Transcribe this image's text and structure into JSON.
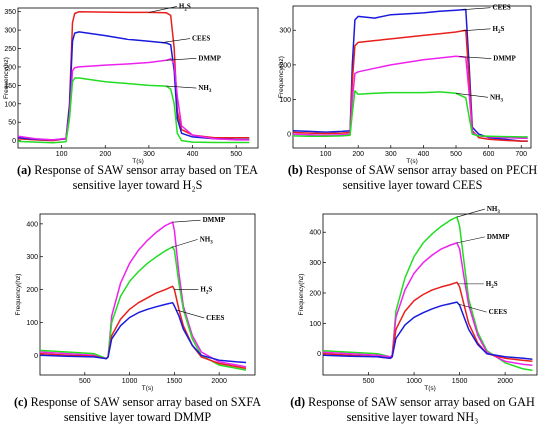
{
  "chart_data": [
    {
      "type": "line",
      "panel_letter": "(a)",
      "caption_line1": " Response of SAW sensor array based on TEA",
      "caption_line2": "sensitive layer toward H₂S",
      "xlabel": "T(s)",
      "ylabel": "Frequency(hz)",
      "xlim": [
        0,
        550
      ],
      "ylim": [
        -20,
        360
      ],
      "xticks": [
        100,
        200,
        300,
        400,
        500
      ],
      "yticks": [
        0,
        50,
        100,
        150,
        200,
        250,
        300,
        350
      ],
      "grid": false,
      "series": [
        {
          "name": "H₂S",
          "color": "#e8201c",
          "x": [
            0,
            40,
            80,
            110,
            118,
            125,
            130,
            140,
            200,
            250,
            300,
            340,
            350,
            358,
            365,
            375,
            400,
            450,
            500,
            530
          ],
          "y": [
            5,
            2,
            0,
            5,
            100,
            320,
            345,
            350,
            349,
            348,
            348,
            347,
            340,
            250,
            80,
            30,
            15,
            8,
            8,
            8
          ]
        },
        {
          "name": "CEES",
          "color": "#1a1adf",
          "x": [
            0,
            40,
            80,
            110,
            118,
            125,
            130,
            140,
            200,
            250,
            300,
            340,
            350,
            358,
            365,
            375,
            400,
            450,
            500,
            530
          ],
          "y": [
            8,
            4,
            2,
            5,
            90,
            270,
            292,
            295,
            285,
            275,
            270,
            265,
            260,
            190,
            60,
            20,
            10,
            5,
            3,
            3
          ]
        },
        {
          "name": "DMMP",
          "color": "#ee22ee",
          "x": [
            0,
            40,
            80,
            110,
            118,
            125,
            130,
            140,
            200,
            250,
            300,
            340,
            350,
            358,
            365,
            375,
            400,
            450,
            500,
            530
          ],
          "y": [
            12,
            5,
            2,
            6,
            70,
            190,
            198,
            200,
            205,
            208,
            212,
            218,
            222,
            210,
            120,
            40,
            15,
            5,
            2,
            2
          ]
        },
        {
          "name": "NH₃",
          "color": "#22dd22",
          "x": [
            0,
            40,
            80,
            110,
            118,
            125,
            130,
            140,
            200,
            250,
            300,
            340,
            350,
            358,
            365,
            375,
            400,
            450,
            500,
            530
          ],
          "y": [
            -2,
            -4,
            -6,
            -3,
            60,
            160,
            170,
            170,
            160,
            155,
            150,
            148,
            140,
            100,
            20,
            0,
            -4,
            -5,
            -5,
            -5
          ]
        }
      ],
      "annotations": [
        {
          "text": "H",
          "sub": "2",
          "text2": "S",
          "series": "H₂S",
          "at_x": 300
        },
        {
          "text": "CEES",
          "sub": "",
          "text2": "",
          "series": "CEES",
          "at_x": 330
        },
        {
          "text": "DMMP",
          "sub": "",
          "text2": "",
          "series": "DMMP",
          "at_x": 340
        },
        {
          "text": "NH",
          "sub": "3",
          "text2": "",
          "series": "NH₃",
          "at_x": 340
        }
      ]
    },
    {
      "type": "line",
      "panel_letter": "(b)",
      "caption_line1": " Response of SAW sensor array based on PECH",
      "caption_line2": "sensitive layer toward CEES",
      "xlabel": "T(s)",
      "ylabel": "Frequency(hz)",
      "xlim": [
        0,
        730
      ],
      "ylim": [
        -40,
        370
      ],
      "xticks": [
        100,
        200,
        300,
        400,
        500,
        600,
        700
      ],
      "yticks": [
        0,
        100,
        200,
        300
      ],
      "grid": false,
      "series": [
        {
          "name": "CEES",
          "color": "#1a1adf",
          "x": [
            0,
            50,
            100,
            150,
            175,
            182,
            190,
            200,
            250,
            300,
            400,
            450,
            500,
            530,
            540,
            550,
            570,
            600,
            650,
            700,
            720
          ],
          "y": [
            10,
            8,
            6,
            8,
            10,
            200,
            330,
            340,
            335,
            345,
            350,
            355,
            358,
            360,
            200,
            20,
            0,
            -10,
            -15,
            -20,
            -20
          ]
        },
        {
          "name": "H₂S",
          "color": "#e8201c",
          "x": [
            0,
            50,
            100,
            150,
            175,
            182,
            190,
            200,
            250,
            300,
            400,
            450,
            500,
            530,
            540,
            550,
            570,
            600,
            650,
            700,
            720
          ],
          "y": [
            5,
            3,
            2,
            3,
            5,
            150,
            255,
            265,
            270,
            275,
            285,
            290,
            295,
            300,
            160,
            10,
            -10,
            -15,
            -18,
            -20,
            -20
          ]
        },
        {
          "name": "DMMP",
          "color": "#ee22ee",
          "x": [
            0,
            50,
            100,
            150,
            175,
            182,
            190,
            200,
            250,
            300,
            400,
            450,
            500,
            530,
            540,
            550,
            570,
            600,
            650,
            700,
            720
          ],
          "y": [
            0,
            -2,
            -3,
            -2,
            0,
            100,
            175,
            180,
            190,
            200,
            215,
            220,
            225,
            222,
            120,
            5,
            -5,
            -8,
            -10,
            -12,
            -12
          ]
        },
        {
          "name": "NH₃",
          "color": "#22dd22",
          "x": [
            0,
            50,
            100,
            150,
            175,
            182,
            190,
            200,
            250,
            300,
            400,
            450,
            500,
            530,
            540,
            550,
            570,
            600,
            650,
            700,
            720
          ],
          "y": [
            -5,
            -6,
            -6,
            -5,
            -3,
            60,
            125,
            115,
            118,
            120,
            120,
            122,
            118,
            105,
            50,
            0,
            -5,
            -6,
            -7,
            -8,
            -8
          ]
        }
      ],
      "annotations": [
        {
          "text": "CEES",
          "sub": "",
          "text2": "",
          "series": "CEES",
          "at_x": 520
        },
        {
          "text": "H",
          "sub": "2",
          "text2": "S",
          "series": "H₂S",
          "at_x": 520
        },
        {
          "text": "DMMP",
          "sub": "",
          "text2": "",
          "series": "DMMP",
          "at_x": 510
        },
        {
          "text": "NH",
          "sub": "3",
          "text2": "",
          "series": "NH₃",
          "at_x": 500
        }
      ]
    },
    {
      "type": "line",
      "panel_letter": "(c)",
      "caption_line1": " Response of SAW sensor array based on SXFA",
      "caption_line2": "sensitive layer toward DMMP",
      "xlabel": "T(s)",
      "ylabel": "Frequency(hz)",
      "xlim": [
        0,
        2400
      ],
      "ylim": [
        -60,
        430
      ],
      "xticks": [
        500,
        1000,
        1500,
        2000
      ],
      "yticks": [
        0,
        100,
        200,
        300,
        400
      ],
      "grid": false,
      "series": [
        {
          "name": "DMMP",
          "color": "#ee22ee",
          "x": [
            0,
            300,
            600,
            740,
            760,
            800,
            900,
            1000,
            1100,
            1200,
            1300,
            1400,
            1480,
            1500,
            1550,
            1600,
            1700,
            1800,
            2000,
            2200,
            2300
          ],
          "y": [
            10,
            5,
            0,
            -10,
            -5,
            120,
            220,
            280,
            320,
            350,
            375,
            395,
            405,
            380,
            250,
            150,
            60,
            10,
            -20,
            -30,
            -35
          ]
        },
        {
          "name": "NH₃",
          "color": "#22dd22",
          "x": [
            0,
            300,
            600,
            740,
            760,
            800,
            900,
            1000,
            1100,
            1200,
            1300,
            1400,
            1480,
            1500,
            1550,
            1600,
            1700,
            1800,
            2000,
            2200,
            2300
          ],
          "y": [
            15,
            10,
            5,
            -10,
            -5,
            100,
            180,
            225,
            255,
            280,
            300,
            318,
            330,
            320,
            220,
            140,
            50,
            0,
            -30,
            -40,
            -45
          ]
        },
        {
          "name": "H₂S",
          "color": "#e8201c",
          "x": [
            0,
            300,
            600,
            740,
            760,
            800,
            900,
            1000,
            1100,
            1200,
            1300,
            1400,
            1480,
            1500,
            1550,
            1600,
            1700,
            1800,
            2000,
            2200,
            2300
          ],
          "y": [
            5,
            0,
            -3,
            -10,
            -5,
            60,
            110,
            140,
            160,
            175,
            190,
            200,
            210,
            200,
            140,
            90,
            30,
            -5,
            -25,
            -35,
            -40
          ]
        },
        {
          "name": "CEES",
          "color": "#1a1adf",
          "x": [
            0,
            300,
            600,
            740,
            760,
            800,
            900,
            1000,
            1100,
            1200,
            1300,
            1400,
            1480,
            1500,
            1550,
            1600,
            1700,
            1800,
            2000,
            2200,
            2300
          ],
          "y": [
            0,
            -3,
            -5,
            -10,
            -5,
            50,
            90,
            115,
            130,
            140,
            148,
            155,
            160,
            150,
            120,
            80,
            30,
            0,
            -15,
            -20,
            -22
          ]
        }
      ],
      "annotations": [
        {
          "text": "DMMP",
          "sub": "",
          "text2": "",
          "series": "DMMP",
          "at_x": 1480
        },
        {
          "text": "NH",
          "sub": "3",
          "text2": "",
          "series": "NH₃",
          "at_x": 1470
        },
        {
          "text": "H",
          "sub": "2",
          "text2": "S",
          "series": "H₂S",
          "at_x": 1500
        },
        {
          "text": "CEES",
          "sub": "",
          "text2": "",
          "series": "CEES",
          "at_x": 1520
        }
      ]
    },
    {
      "type": "line",
      "panel_letter": "(d)",
      "caption_line1": " Response of SAW sensor array based on GAH",
      "caption_line2": "sensitive layer toward NH₃",
      "xlabel": "T(s)",
      "ylabel": "Frequency(hz)",
      "xlim": [
        0,
        2350
      ],
      "ylim": [
        -70,
        460
      ],
      "xticks": [
        500,
        1000,
        1500,
        2000
      ],
      "yticks": [
        0,
        100,
        200,
        300,
        400
      ],
      "grid": false,
      "series": [
        {
          "name": "NH₃",
          "color": "#22dd22",
          "x": [
            0,
            300,
            600,
            740,
            760,
            800,
            900,
            1000,
            1100,
            1200,
            1300,
            1400,
            1470,
            1500,
            1550,
            1600,
            1700,
            1800,
            2000,
            2200,
            2300
          ],
          "y": [
            10,
            5,
            0,
            -10,
            -5,
            140,
            250,
            320,
            365,
            395,
            420,
            440,
            450,
            420,
            300,
            180,
            70,
            10,
            -30,
            -50,
            -55
          ]
        },
        {
          "name": "DMMP",
          "color": "#ee22ee",
          "x": [
            0,
            300,
            600,
            740,
            760,
            800,
            900,
            1000,
            1100,
            1200,
            1300,
            1400,
            1470,
            1500,
            1550,
            1600,
            1700,
            1800,
            2000,
            2200,
            2300
          ],
          "y": [
            5,
            0,
            -5,
            -10,
            -5,
            120,
            210,
            265,
            300,
            325,
            345,
            358,
            365,
            345,
            250,
            160,
            60,
            5,
            -25,
            -35,
            -38
          ]
        },
        {
          "name": "H₂S",
          "color": "#e8201c",
          "x": [
            0,
            300,
            600,
            740,
            760,
            800,
            900,
            1000,
            1100,
            1200,
            1300,
            1400,
            1470,
            1500,
            1550,
            1600,
            1700,
            1800,
            2000,
            2200,
            2300
          ],
          "y": [
            0,
            -5,
            -10,
            -15,
            -10,
            80,
            140,
            175,
            195,
            210,
            220,
            228,
            235,
            220,
            160,
            100,
            35,
            0,
            -15,
            -22,
            -25
          ]
        },
        {
          "name": "CEES",
          "color": "#1a1adf",
          "x": [
            0,
            300,
            600,
            740,
            760,
            800,
            900,
            1000,
            1100,
            1200,
            1300,
            1400,
            1470,
            1500,
            1550,
            1600,
            1700,
            1800,
            2000,
            2200,
            2300
          ],
          "y": [
            -5,
            -8,
            -10,
            -15,
            -10,
            50,
            95,
            120,
            135,
            148,
            158,
            165,
            170,
            160,
            120,
            80,
            30,
            0,
            -10,
            -15,
            -18
          ]
        }
      ],
      "annotations": [
        {
          "text": "NH",
          "sub": "3",
          "text2": "",
          "series": "NH₃",
          "at_x": 1470
        },
        {
          "text": "DMMP",
          "sub": "",
          "text2": "",
          "series": "DMMP",
          "at_x": 1470
        },
        {
          "text": "H",
          "sub": "2",
          "text2": "S",
          "series": "H₂S",
          "at_x": 1480
        },
        {
          "text": "CEES",
          "sub": "",
          "text2": "",
          "series": "CEES",
          "at_x": 1490
        }
      ]
    }
  ]
}
